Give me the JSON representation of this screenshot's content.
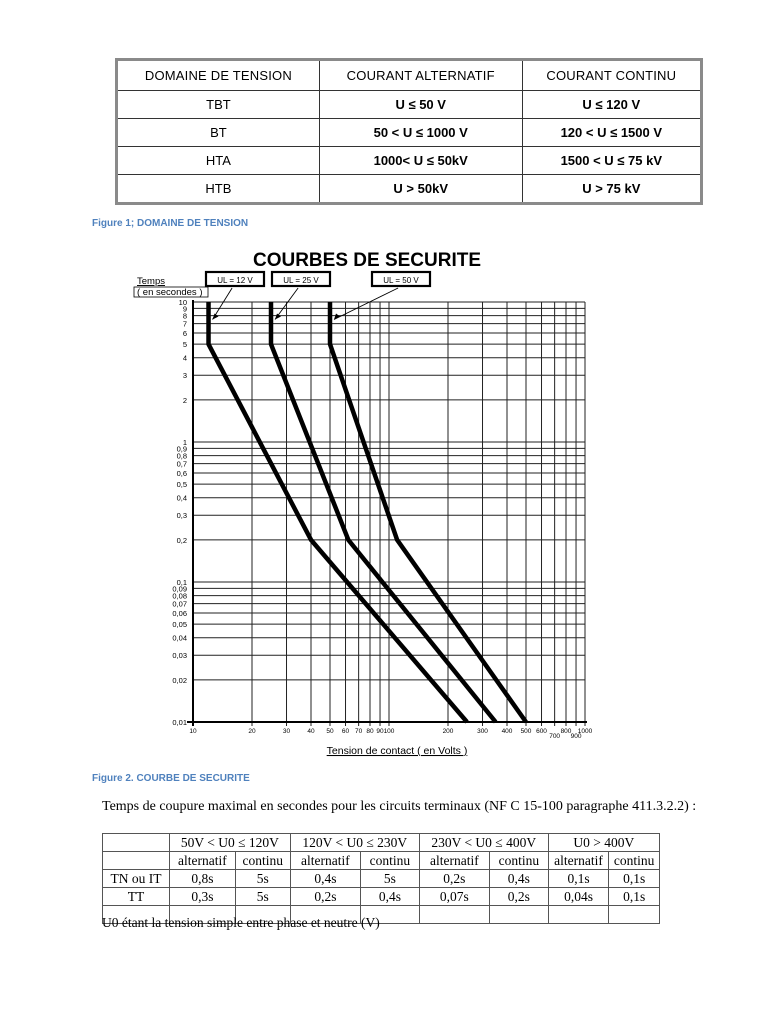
{
  "table1": {
    "headers": [
      "DOMAINE DE TENSION",
      "COURANT ALTERNATIF",
      "COURANT CONTINU"
    ],
    "rows": [
      [
        "TBT",
        "U ≤ 50 V",
        "U ≤ 120 V"
      ],
      [
        "BT",
        "50 < U ≤ 1000 V",
        "120 < U ≤ 1500 V"
      ],
      [
        "HTA",
        "1000< U ≤ 50kV",
        "1500 < U ≤ 75 kV"
      ],
      [
        "HTB",
        "U > 50kV",
        "U > 75 kV"
      ]
    ]
  },
  "figure1_caption": "Figure 1; DOMAINE DE TENSION",
  "figure2_caption": "Figure 2. COURBE DE SECURITE",
  "caption_color": "#4f81bd",
  "chart_data": {
    "type": "line",
    "title": "COURBES DE SECURITE",
    "xlabel": "Tension de contact ( en Volts )",
    "ylabel": "Temps ( en secondes )",
    "xscale": "log",
    "yscale": "log",
    "xlim": [
      10,
      1000
    ],
    "ylim": [
      0.01,
      10
    ],
    "grid": true,
    "x_ticks": [
      "10",
      "20",
      "30",
      "40",
      "50",
      "60",
      "70",
      "80",
      "90",
      "100",
      "200",
      "300",
      "400",
      "500",
      "600",
      "700",
      "800",
      "900",
      "1000"
    ],
    "y_ticks": [
      "10",
      "9",
      "8",
      "7",
      "6",
      "5",
      "4",
      "3",
      "2",
      "1",
      "0,9",
      "0,8",
      "0,7",
      "0,6",
      "0,5",
      "0,4",
      "0,3",
      "0,2",
      "0,1",
      "0,09",
      "0,08",
      "0,07",
      "0,06",
      "0,05",
      "0,04",
      "0,03",
      "0,02",
      "0,01"
    ],
    "series": [
      {
        "name": "UL = 12 V",
        "points": [
          [
            12,
            10
          ],
          [
            12,
            5
          ],
          [
            40,
            0.2
          ],
          [
            250,
            0.01
          ]
        ]
      },
      {
        "name": "UL = 25 V",
        "points": [
          [
            25,
            10
          ],
          [
            25,
            5
          ],
          [
            62,
            0.2
          ],
          [
            350,
            0.01
          ]
        ]
      },
      {
        "name": "UL = 50 V",
        "points": [
          [
            50,
            10
          ],
          [
            50,
            5
          ],
          [
            110,
            0.2
          ],
          [
            500,
            0.01
          ]
        ]
      }
    ]
  },
  "table2": {
    "intro": "Temps de coupure maximal en secondes pour les circuits terminaux (NF C 15-100 paragraphe 411.3.2.2) :",
    "groups": [
      "50V  < U0 ≤  120V",
      "120V  < U0 ≤  230V",
      "230V  < U0 ≤  400V",
      "U0 > 400V"
    ],
    "subheaders": [
      "alternatif",
      "continu",
      "alternatif",
      "continu",
      "alternatif",
      "continu",
      "alternatif",
      "continu"
    ],
    "rows": [
      {
        "label": "TN ou IT",
        "values": [
          "0,8s",
          "5s",
          "0,4s",
          "5s",
          "0,2s",
          "0,4s",
          "0,1s",
          "0,1s"
        ]
      },
      {
        "label": "TT",
        "values": [
          "0,3s",
          "5s",
          "0,2s",
          "0,4s",
          "0,07s",
          "0,2s",
          "0,04s",
          "0,1s"
        ]
      }
    ],
    "note": "U0 étant la tension simple entre phase et neutre (V)"
  }
}
